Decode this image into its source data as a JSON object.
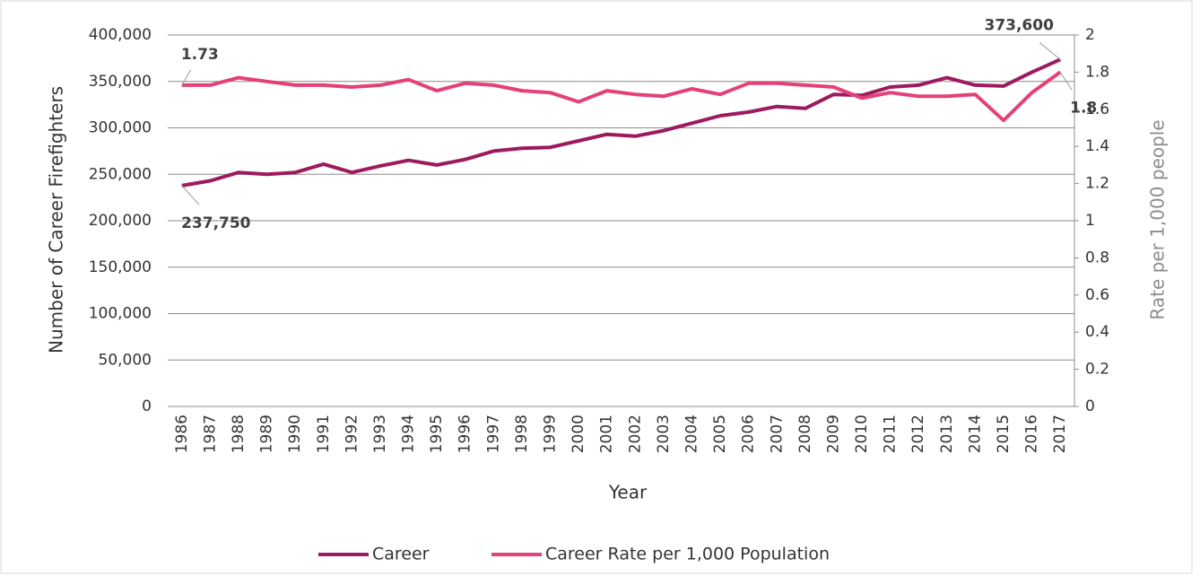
{
  "chart_data": {
    "type": "line",
    "x_label": "Year",
    "y_label": "Number of Career  Firefighters",
    "y2_label": "Rate per 1,000 people",
    "categories": [
      "1986",
      "1987",
      "1988",
      "1989",
      "1990",
      "1991",
      "1992",
      "1993",
      "1994",
      "1995",
      "1996",
      "1997",
      "1998",
      "1999",
      "2000",
      "2001",
      "2002",
      "2003",
      "2004",
      "2005",
      "2006",
      "2007",
      "2008",
      "2009",
      "2010",
      "2011",
      "2012",
      "2013",
      "2014",
      "2015",
      "2016",
      "2017"
    ],
    "series": [
      {
        "name": "Career",
        "color": "#9e1a5f",
        "values": [
          237750,
          243000,
          252000,
          250000,
          252000,
          261000,
          252000,
          259000,
          265000,
          260000,
          266000,
          275000,
          278000,
          279000,
          286000,
          293000,
          291000,
          297000,
          305000,
          313000,
          317000,
          323000,
          321000,
          336000,
          335000,
          344000,
          346000,
          354000,
          346000,
          345000,
          360000,
          373600
        ],
        "value_labels": [
          "237,750",
          null,
          null,
          null,
          null,
          null,
          null,
          null,
          null,
          null,
          null,
          null,
          null,
          null,
          null,
          null,
          null,
          null,
          null,
          null,
          null,
          null,
          null,
          null,
          null,
          null,
          null,
          null,
          null,
          null,
          null,
          "373,600"
        ]
      },
      {
        "name": "Career Rate per 1,000 Population",
        "color": "#e4407a",
        "axis": "y2",
        "values": [
          1.73,
          1.73,
          1.77,
          1.75,
          1.73,
          1.73,
          1.72,
          1.73,
          1.76,
          1.7,
          1.74,
          1.73,
          1.7,
          1.69,
          1.64,
          1.7,
          1.68,
          1.67,
          1.71,
          1.68,
          1.74,
          1.74,
          1.73,
          1.72,
          1.66,
          1.69,
          1.67,
          1.67,
          1.68,
          1.54,
          1.69,
          1.8
        ],
        "value_labels": [
          "1.73",
          null,
          null,
          null,
          null,
          null,
          null,
          null,
          null,
          null,
          null,
          null,
          null,
          null,
          null,
          null,
          null,
          null,
          null,
          null,
          null,
          null,
          null,
          null,
          null,
          null,
          null,
          null,
          null,
          null,
          null,
          "1.8"
        ]
      }
    ],
    "ylim": [
      0,
      400000
    ],
    "yticks": [
      0,
      {
        "value": 50000,
        "label": "50,000"
      },
      {
        "value": 100000,
        "label": "100,000"
      },
      {
        "value": 150000,
        "label": "150,000"
      },
      {
        "value": 200000,
        "label": "200,000"
      },
      {
        "value": 250000,
        "label": "250,000"
      },
      {
        "value": 300000,
        "label": "300,000"
      },
      {
        "value": 350000,
        "label": "350,000"
      },
      {
        "value": 400000,
        "label": "400,000"
      }
    ],
    "y2lim": [
      0,
      2
    ],
    "y2ticks": [
      0,
      0.2,
      0.4,
      0.6,
      0.8,
      1,
      1.2,
      1.4,
      1.6,
      1.8,
      2
    ],
    "grid": true,
    "legend": "bottom"
  }
}
